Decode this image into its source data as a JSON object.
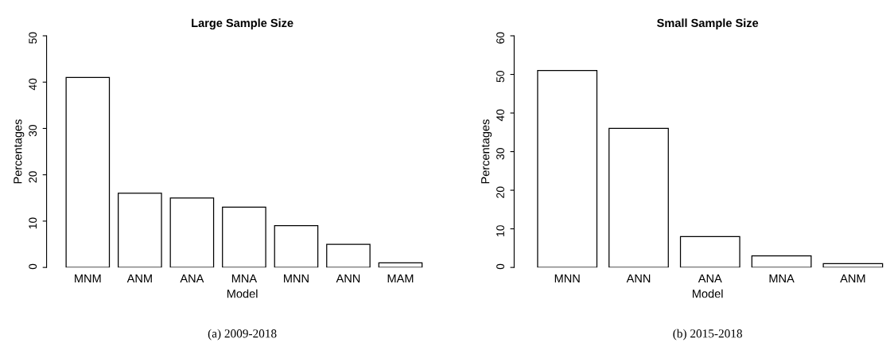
{
  "chart_data": [
    {
      "type": "bar",
      "title": "Large Sample Size",
      "xlabel": "Model",
      "ylabel": "Percentages",
      "categories": [
        "MNM",
        "ANM",
        "ANA",
        "MNA",
        "MNN",
        "ANN",
        "MAM"
      ],
      "values": [
        41,
        16,
        15,
        13,
        9,
        5,
        1
      ],
      "color": "#ffffff",
      "ylim": [
        0,
        50
      ],
      "yticks": [
        0,
        10,
        20,
        30,
        40,
        50
      ],
      "grid": false,
      "annotations": [
        "(a) 2009-2018"
      ]
    },
    {
      "type": "bar",
      "title": "Small Sample Size",
      "xlabel": "Model",
      "ylabel": "Percentages",
      "categories": [
        "MNN",
        "ANN",
        "ANA",
        "MNA",
        "ANM"
      ],
      "values": [
        51,
        36,
        8,
        3,
        1
      ],
      "color": "#ffffff",
      "ylim": [
        0,
        60
      ],
      "yticks": [
        0,
        10,
        20,
        30,
        40,
        50,
        60
      ],
      "grid": false,
      "annotations": [
        "(b) 2015-2018"
      ]
    }
  ]
}
